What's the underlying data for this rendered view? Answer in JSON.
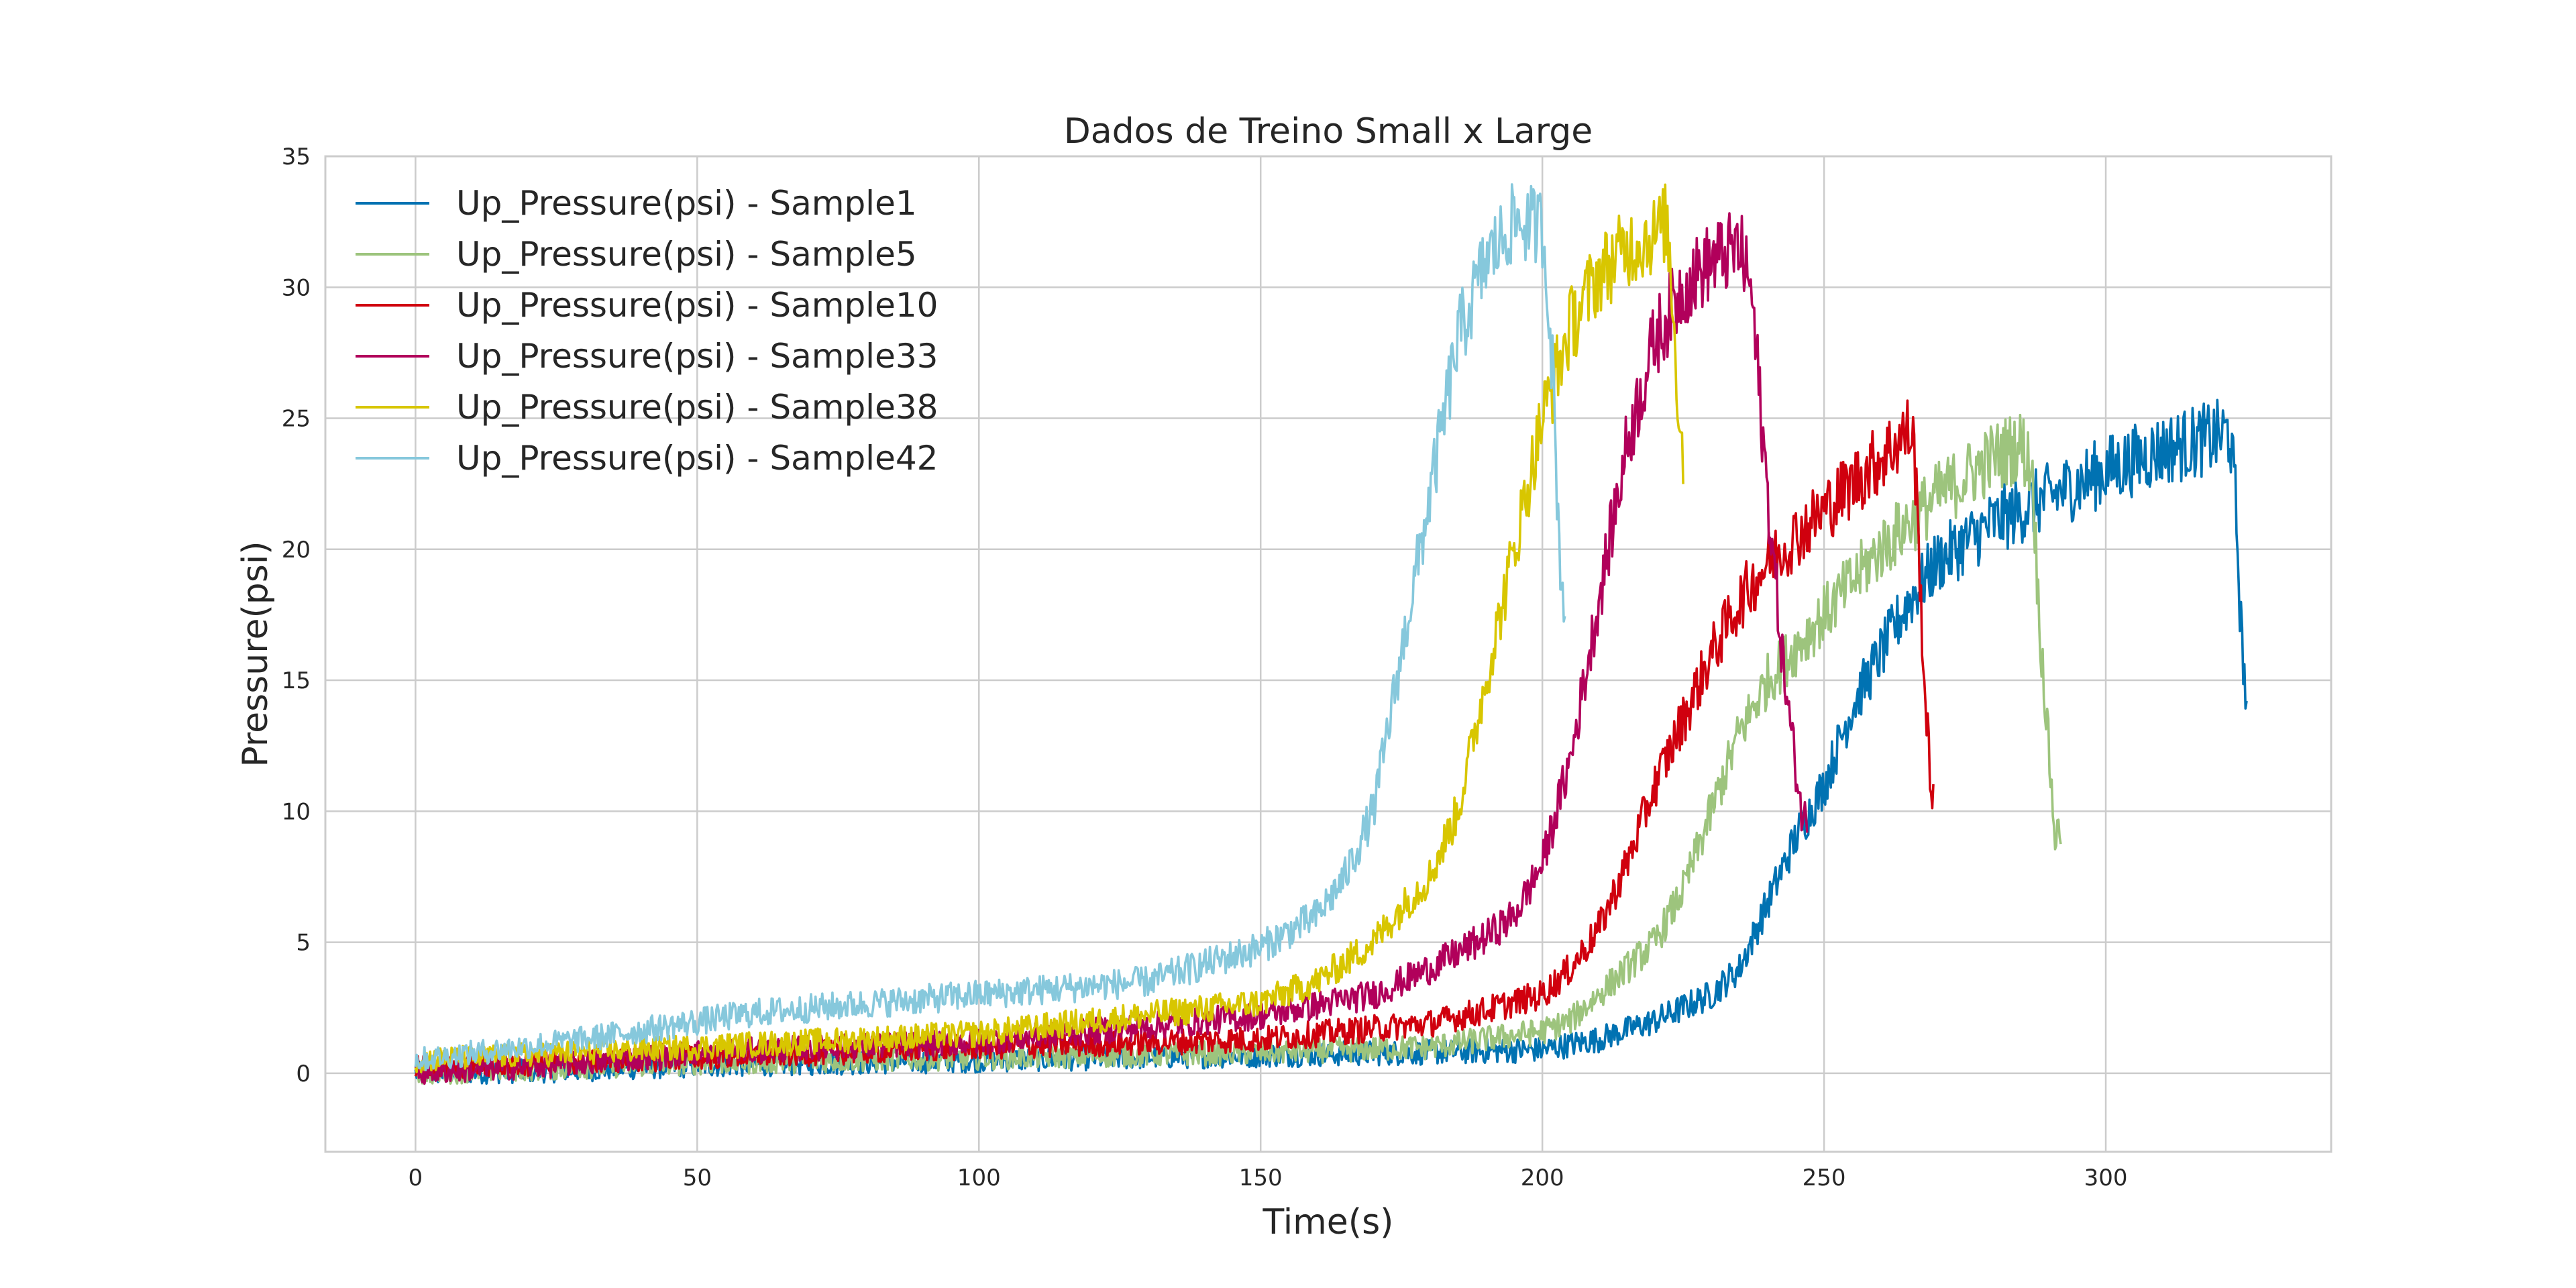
{
  "chart_data": {
    "type": "line",
    "title": "Dados de Treino Small x Large",
    "xlabel": "Time(s)",
    "ylabel": "Pressure(psi)",
    "xlim": [
      -16,
      340
    ],
    "ylim": [
      -3,
      35
    ],
    "x_ticks": [
      0,
      50,
      100,
      150,
      200,
      250,
      300
    ],
    "y_ticks": [
      0,
      5,
      10,
      15,
      20,
      25,
      30,
      35
    ],
    "grid": true,
    "legend_position": "top-left",
    "series": [
      {
        "name": "Up_Pressure(psi) - Sample1",
        "color": "#0072b2",
        "points": [
          [
            0,
            0
          ],
          [
            25,
            0.1
          ],
          [
            50,
            0.3
          ],
          [
            100,
            0.5
          ],
          [
            150,
            0.7
          ],
          [
            180,
            0.8
          ],
          [
            200,
            0.9
          ],
          [
            210,
            1.3
          ],
          [
            220,
            2
          ],
          [
            230,
            3
          ],
          [
            235,
            4
          ],
          [
            240,
            6.5
          ],
          [
            245,
            9
          ],
          [
            250,
            11
          ],
          [
            255,
            14
          ],
          [
            260,
            16
          ],
          [
            265,
            18
          ],
          [
            270,
            19.5
          ],
          [
            280,
            21
          ],
          [
            290,
            22
          ],
          [
            300,
            23
          ],
          [
            310,
            23.8
          ],
          [
            320,
            24.3
          ],
          [
            322,
            24.5
          ],
          [
            323,
            22
          ],
          [
            324,
            17
          ],
          [
            325,
            14
          ]
        ]
      },
      {
        "name": "Up_Pressure(psi) - Sample5",
        "color": "#9dc47d",
        "points": [
          [
            0,
            0
          ],
          [
            25,
            0.2
          ],
          [
            50,
            0.4
          ],
          [
            100,
            0.6
          ],
          [
            150,
            0.8
          ],
          [
            180,
            1
          ],
          [
            200,
            1.6
          ],
          [
            205,
            2
          ],
          [
            210,
            3
          ],
          [
            220,
            5
          ],
          [
            225,
            7
          ],
          [
            230,
            10
          ],
          [
            235,
            13
          ],
          [
            240,
            15
          ],
          [
            250,
            17.5
          ],
          [
            260,
            20
          ],
          [
            270,
            22
          ],
          [
            280,
            23.5
          ],
          [
            285,
            24
          ],
          [
            287,
            23
          ],
          [
            288,
            18
          ],
          [
            290,
            12
          ],
          [
            291,
            9
          ],
          [
            292,
            9.3
          ]
        ]
      },
      {
        "name": "Up_Pressure(psi) - Sample10",
        "color": "#d0000e",
        "points": [
          [
            0,
            0.2
          ],
          [
            50,
            0.6
          ],
          [
            100,
            1
          ],
          [
            150,
            1.3
          ],
          [
            180,
            1.9
          ],
          [
            190,
            2.4
          ],
          [
            200,
            3
          ],
          [
            205,
            4
          ],
          [
            210,
            5.5
          ],
          [
            215,
            8
          ],
          [
            220,
            11
          ],
          [
            225,
            13.5
          ],
          [
            230,
            16
          ],
          [
            235,
            18
          ],
          [
            240,
            19.5
          ],
          [
            250,
            21.5
          ],
          [
            260,
            23.5
          ],
          [
            265,
            24.5
          ],
          [
            266,
            24
          ],
          [
            267,
            19
          ],
          [
            268,
            14
          ],
          [
            269,
            11
          ],
          [
            269.5,
            10.5
          ]
        ]
      },
      {
        "name": "Up_Pressure(psi) - Sample33",
        "color": "#b1005b",
        "points": [
          [
            0,
            0
          ],
          [
            25,
            0.3
          ],
          [
            50,
            0.8
          ],
          [
            100,
            1.2
          ],
          [
            150,
            2.2
          ],
          [
            170,
            3
          ],
          [
            180,
            4
          ],
          [
            190,
            5.2
          ],
          [
            195,
            6
          ],
          [
            200,
            8
          ],
          [
            205,
            12
          ],
          [
            210,
            18
          ],
          [
            215,
            24
          ],
          [
            220,
            28
          ],
          [
            225,
            30
          ],
          [
            230,
            31
          ],
          [
            235,
            31.5
          ],
          [
            237,
            30
          ],
          [
            240,
            22
          ],
          [
            243,
            15
          ],
          [
            246,
            10
          ],
          [
            247,
            9.5
          ]
        ]
      },
      {
        "name": "Up_Pressure(psi) - Sample38",
        "color": "#d8c600",
        "points": [
          [
            0,
            0.5
          ],
          [
            50,
            1
          ],
          [
            100,
            1.5
          ],
          [
            150,
            2.7
          ],
          [
            160,
            3.5
          ],
          [
            170,
            5
          ],
          [
            175,
            6.3
          ],
          [
            180,
            7.5
          ],
          [
            185,
            10
          ],
          [
            190,
            15
          ],
          [
            195,
            20
          ],
          [
            200,
            25
          ],
          [
            205,
            28.5
          ],
          [
            210,
            30.5
          ],
          [
            215,
            31.5
          ],
          [
            220,
            32
          ],
          [
            222,
            32.5
          ],
          [
            223,
            30
          ],
          [
            224,
            26
          ],
          [
            225,
            23.5
          ]
        ]
      },
      {
        "name": "Up_Pressure(psi) - Sample42",
        "color": "#86c8dc",
        "points": [
          [
            0,
            0.5
          ],
          [
            30,
            1.3
          ],
          [
            60,
            2.3
          ],
          [
            100,
            3
          ],
          [
            130,
            3.5
          ],
          [
            150,
            4.8
          ],
          [
            160,
            6
          ],
          [
            165,
            7.5
          ],
          [
            170,
            10
          ],
          [
            175,
            16
          ],
          [
            180,
            22
          ],
          [
            185,
            28
          ],
          [
            190,
            31
          ],
          [
            195,
            32.5
          ],
          [
            200,
            32.3
          ],
          [
            201,
            30
          ],
          [
            202,
            26
          ],
          [
            203,
            20
          ],
          [
            204,
            17.5
          ]
        ]
      }
    ]
  }
}
